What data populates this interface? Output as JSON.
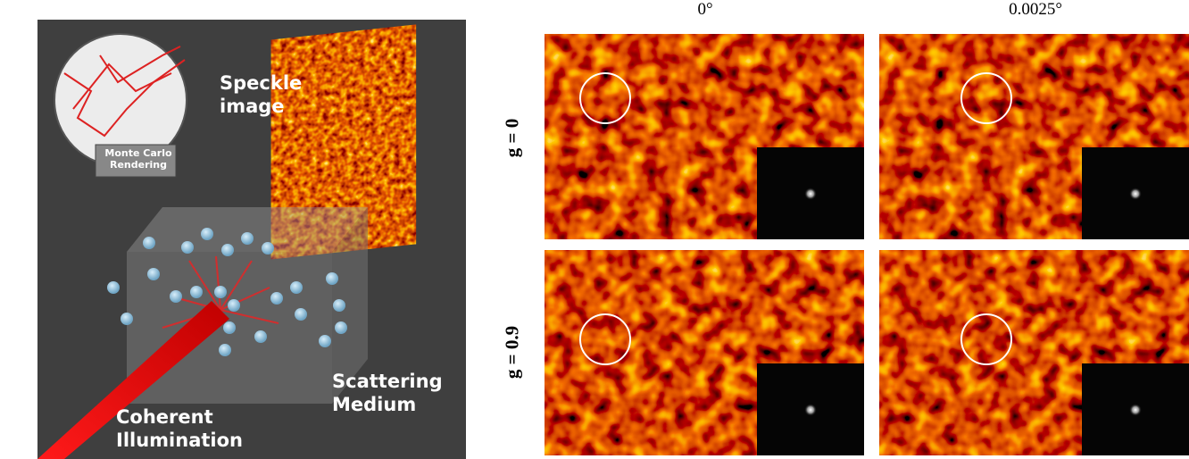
{
  "left_panel": {
    "inset_label": "Monte Carlo Rendering",
    "speckle_label": "Speckle image",
    "medium_label": "Scattering Medium",
    "illumination_label": "Coherent Illumination"
  },
  "columns": [
    "0°",
    "0.0025°"
  ],
  "rows": [
    "g = 0",
    "g = 0.9"
  ]
}
